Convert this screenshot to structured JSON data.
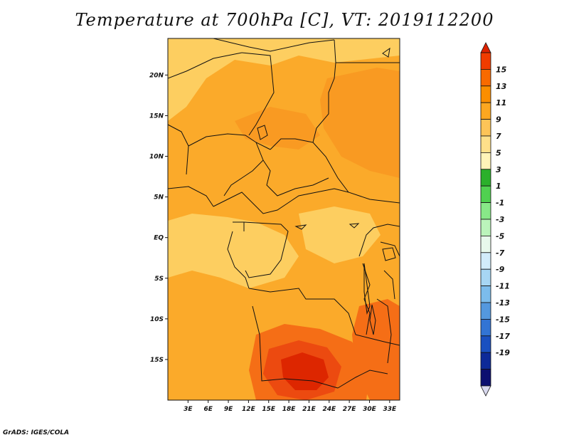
{
  "title": "Temperature at 700hPa [C], VT: 2019112200",
  "credit": "GrADS: IGES/COLA",
  "map": {
    "lon_range": [
      0,
      34.5
    ],
    "lat_range": [
      -20,
      24.5
    ],
    "lat_ticks": [
      {
        "value": 20,
        "label": "20N"
      },
      {
        "value": 15,
        "label": "15N"
      },
      {
        "value": 10,
        "label": "10N"
      },
      {
        "value": 5,
        "label": "5N"
      },
      {
        "value": 0,
        "label": "EQ"
      },
      {
        "value": -5,
        "label": "5S"
      },
      {
        "value": -10,
        "label": "10S"
      },
      {
        "value": -15,
        "label": "15S"
      }
    ],
    "lon_ticks": [
      {
        "value": 3,
        "label": "3E"
      },
      {
        "value": 6,
        "label": "6E"
      },
      {
        "value": 9,
        "label": "9E"
      },
      {
        "value": 12,
        "label": "12E"
      },
      {
        "value": 15,
        "label": "15E"
      },
      {
        "value": 18,
        "label": "18E"
      },
      {
        "value": 21,
        "label": "21E"
      },
      {
        "value": 24,
        "label": "24E"
      },
      {
        "value": 27,
        "label": "27E"
      },
      {
        "value": 30,
        "label": "30E"
      },
      {
        "value": 33,
        "label": "33E"
      }
    ]
  },
  "colorbar": {
    "labels": [
      "15",
      "13",
      "11",
      "9",
      "7",
      "5",
      "3",
      "1",
      "-1",
      "-3",
      "-5",
      "-7",
      "-9",
      "-11",
      "-13",
      "-15",
      "-17",
      "-19"
    ],
    "colors": [
      "#dd2200",
      "#f03c00",
      "#f96a00",
      "#fb8e00",
      "#fca720",
      "#fdc458",
      "#fee08a",
      "#fff4b8",
      "#2bb02b",
      "#50d150",
      "#88e888",
      "#bbf4bb",
      "#e8f9ec",
      "#d2ecfa",
      "#a7d6f4",
      "#7cbcec",
      "#5498de",
      "#3274d4",
      "#1a50c0",
      "#0d2a98",
      "#0c0f70",
      "#d8d8ee"
    ]
  },
  "field_colors": {
    "light": "#fdce60",
    "mid": "#fbaa2a",
    "warm": "#f99a22",
    "hot": "#f56e16",
    "hotter": "#ec4a10",
    "hottest": "#dd2600"
  }
}
